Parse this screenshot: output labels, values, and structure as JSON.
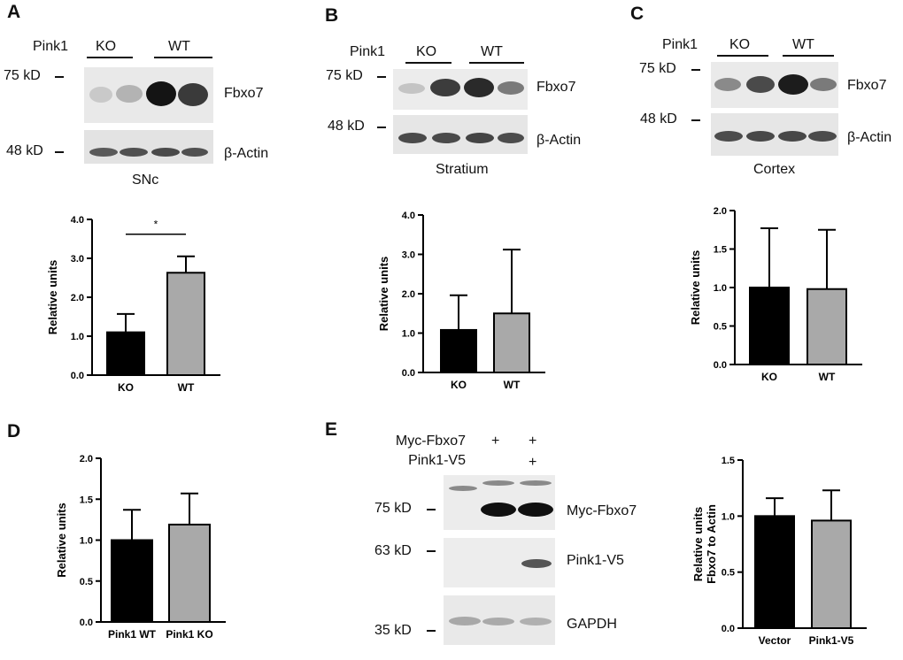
{
  "panels": {
    "A": {
      "letter": "A",
      "genotype_label": "Pink1",
      "groups": [
        "KO",
        "WT"
      ],
      "markers": [
        "75 kD",
        "48 kD"
      ],
      "blots": [
        "Fbxo7",
        "β-Actin"
      ],
      "region": "SNc"
    },
    "B": {
      "letter": "B",
      "genotype_label": "Pink1",
      "groups": [
        "KO",
        "WT"
      ],
      "markers": [
        "75 kD",
        "48 kD"
      ],
      "blots": [
        "Fbxo7",
        "β-Actin"
      ],
      "region": "Stratium"
    },
    "C": {
      "letter": "C",
      "genotype_label": "Pink1",
      "groups": [
        "KO",
        "WT"
      ],
      "markers": [
        "75 kD",
        "48 kD"
      ],
      "blots": [
        "Fbxo7",
        "β-Actin"
      ],
      "region": "Cortex"
    },
    "D": {
      "letter": "D"
    },
    "E": {
      "letter": "E",
      "rows": [
        {
          "label": "Myc-Fbxo7",
          "signs": [
            "",
            "+",
            "+"
          ]
        },
        {
          "label": "Pink1-V5",
          "signs": [
            "",
            "",
            "+"
          ]
        }
      ],
      "markers": [
        "75 kD",
        "63 kD",
        "35 kD"
      ],
      "blots": [
        "Myc-Fbxo7",
        "Pink1-V5",
        "GAPDH"
      ]
    }
  },
  "chart_data": [
    {
      "panel": "A",
      "type": "bar",
      "categories": [
        "KO",
        "WT"
      ],
      "values": [
        1.1,
        2.63
      ],
      "error": [
        0.47,
        0.42
      ],
      "bar_colors": [
        "#000000",
        "#a9a9a9"
      ],
      "ylabel": "Relative units",
      "ylim": [
        0,
        4
      ],
      "yticks": [
        "0.0",
        "1.0",
        "2.0",
        "3.0",
        "4.0"
      ],
      "annotation": "*"
    },
    {
      "panel": "B",
      "type": "bar",
      "categories": [
        "KO",
        "WT"
      ],
      "values": [
        1.08,
        1.5
      ],
      "error": [
        0.88,
        1.62
      ],
      "bar_colors": [
        "#000000",
        "#a9a9a9"
      ],
      "ylabel": "Relative units",
      "ylim": [
        0,
        4
      ],
      "yticks": [
        "0.0",
        "1.0",
        "2.0",
        "3.0",
        "4.0"
      ]
    },
    {
      "panel": "C",
      "type": "bar",
      "categories": [
        "KO",
        "WT"
      ],
      "values": [
        1.0,
        0.98
      ],
      "error": [
        0.77,
        0.77
      ],
      "bar_colors": [
        "#000000",
        "#a9a9a9"
      ],
      "ylabel": "Relative units",
      "ylim": [
        0,
        2
      ],
      "yticks": [
        "0.0",
        "0.5",
        "1.0",
        "1.5",
        "2.0"
      ]
    },
    {
      "panel": "D",
      "type": "bar",
      "categories": [
        "Pink1 WT",
        "Pink1 KO"
      ],
      "values": [
        1.0,
        1.19
      ],
      "error": [
        0.37,
        0.38
      ],
      "bar_colors": [
        "#000000",
        "#a9a9a9"
      ],
      "ylabel": "Relative units",
      "ylim": [
        0,
        2
      ],
      "yticks": [
        "0.0",
        "0.5",
        "1.0",
        "1.5",
        "2.0"
      ]
    },
    {
      "panel": "E",
      "type": "bar",
      "categories": [
        "Vector",
        "Pink1-V5"
      ],
      "values": [
        1.0,
        0.96
      ],
      "error": [
        0.16,
        0.27
      ],
      "bar_colors": [
        "#000000",
        "#a9a9a9"
      ],
      "ylabel": "Relative units",
      "ylabel2": "Fbxo7 to Actin",
      "ylim": [
        0,
        1.5
      ],
      "yticks": [
        "0.0",
        "0.5",
        "1.0",
        "1.5"
      ]
    }
  ]
}
